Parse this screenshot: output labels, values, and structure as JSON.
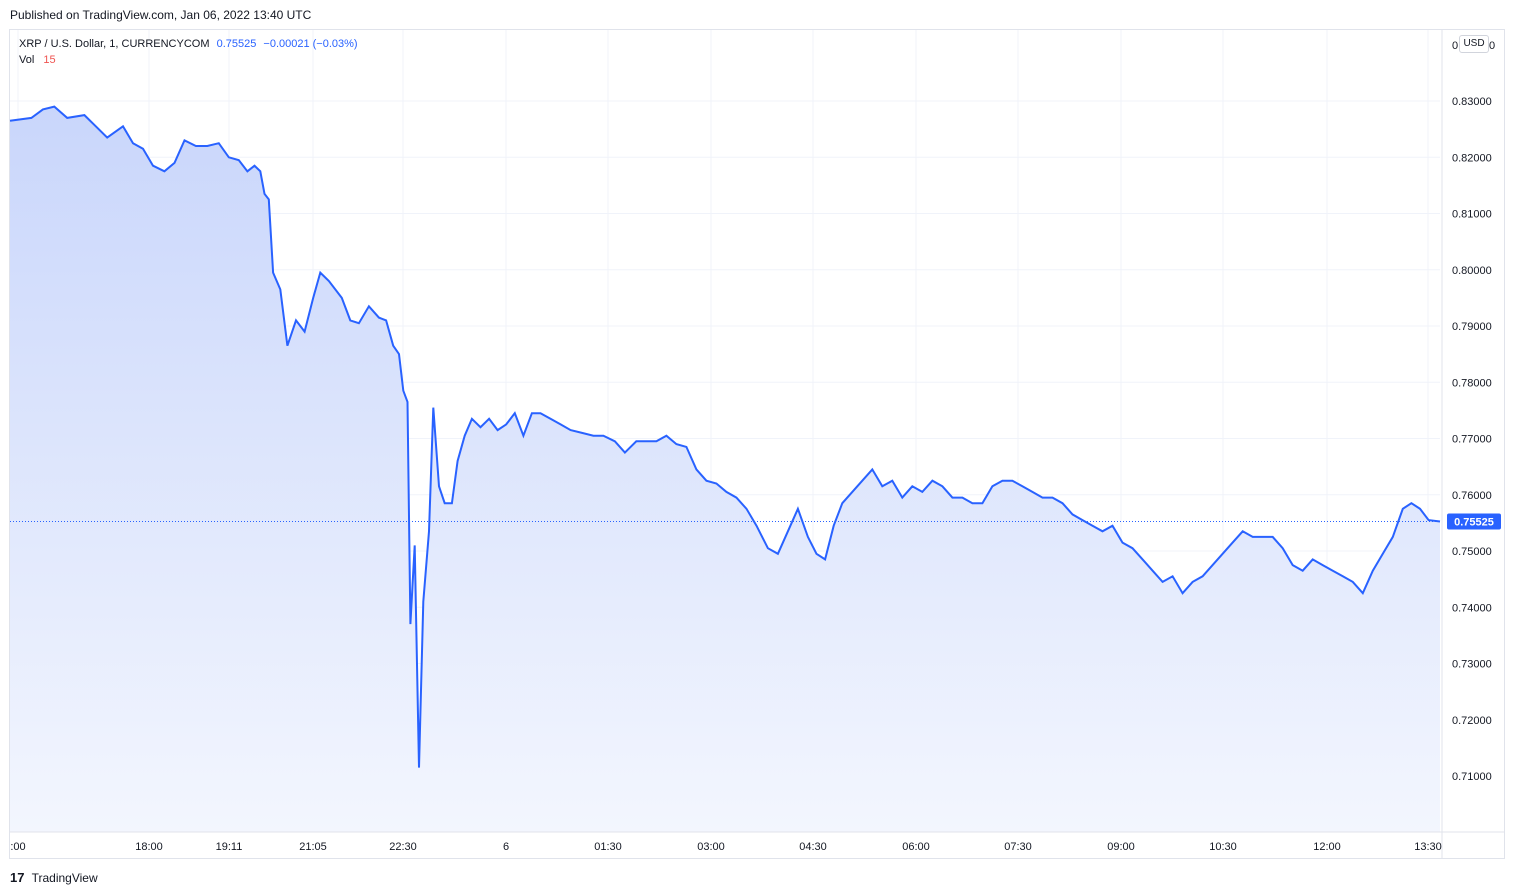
{
  "header": {
    "published": "Published on TradingView.com, Jan 06, 2022 13:40 UTC"
  },
  "legend": {
    "symbol": "XRP / U.S. Dollar, 1, CURRENCYCOM",
    "price": "0.75525",
    "change": "−0.00021 (−0.03%)",
    "volume_label": "Vol",
    "volume_value": "15"
  },
  "currency_button": "USD",
  "footer": {
    "logo": "17",
    "brand": "TradingView"
  },
  "colors": {
    "line": "#2962ff",
    "area_top": "#c9d6fb",
    "area_bottom": "#f3f6fe",
    "vol_up": "#26a69a",
    "vol_down": "#ef5350",
    "grid": "#f0f3fa"
  },
  "chart_data": {
    "type": "area",
    "ylim": [
      0.7,
      0.84
    ],
    "y_ticks": [
      "0.71000",
      "0.72000",
      "0.73000",
      "0.74000",
      "0.75000",
      "0.76000",
      "0.77000",
      "0.78000",
      "0.79000",
      "0.80000",
      "0.81000",
      "0.82000",
      "0.83000"
    ],
    "top_tick_partial": "0",
    "x_ticks": [
      ":00",
      "18:00",
      "19:11",
      "21:05",
      "22:30",
      "6",
      "01:30",
      "03:00",
      "04:30",
      "06:00",
      "07:30",
      "09:00",
      "10:30",
      "12:00",
      "13:30"
    ],
    "last_price_label": "0.75525",
    "last_price": 0.75525,
    "x_range": [
      0,
      100
    ],
    "price_series": [
      [
        0,
        0.8265
      ],
      [
        1.5,
        0.827
      ],
      [
        2.3,
        0.8285
      ],
      [
        3.1,
        0.829
      ],
      [
        4,
        0.827
      ],
      [
        5.2,
        0.8275
      ],
      [
        6,
        0.8255
      ],
      [
        6.8,
        0.8235
      ],
      [
        7.9,
        0.8255
      ],
      [
        8.6,
        0.8225
      ],
      [
        9.3,
        0.8215
      ],
      [
        10,
        0.8185
      ],
      [
        10.8,
        0.8175
      ],
      [
        11.5,
        0.819
      ],
      [
        12.2,
        0.823
      ],
      [
        13,
        0.822
      ],
      [
        13.8,
        0.822
      ],
      [
        14.6,
        0.8225
      ],
      [
        15.3,
        0.82
      ],
      [
        16,
        0.8195
      ],
      [
        16.6,
        0.8175
      ],
      [
        17.1,
        0.8185
      ],
      [
        17.5,
        0.8175
      ],
      [
        17.8,
        0.8135
      ],
      [
        18.1,
        0.8125
      ],
      [
        18.4,
        0.7995
      ],
      [
        18.9,
        0.7965
      ],
      [
        19.4,
        0.7865
      ],
      [
        20,
        0.791
      ],
      [
        20.6,
        0.789
      ],
      [
        21.2,
        0.795
      ],
      [
        21.7,
        0.7995
      ],
      [
        22.3,
        0.798
      ],
      [
        23.2,
        0.795
      ],
      [
        23.8,
        0.791
      ],
      [
        24.4,
        0.7905
      ],
      [
        25.1,
        0.7935
      ],
      [
        25.8,
        0.7915
      ],
      [
        26.3,
        0.791
      ],
      [
        26.8,
        0.7865
      ],
      [
        27.2,
        0.785
      ],
      [
        27.5,
        0.7785
      ],
      [
        27.8,
        0.7765
      ],
      [
        28,
        0.737
      ],
      [
        28.3,
        0.751
      ],
      [
        28.6,
        0.7115
      ],
      [
        28.9,
        0.741
      ],
      [
        29.3,
        0.7535
      ],
      [
        29.6,
        0.7755
      ],
      [
        30,
        0.7615
      ],
      [
        30.4,
        0.7585
      ],
      [
        30.9,
        0.7585
      ],
      [
        31.3,
        0.766
      ],
      [
        31.8,
        0.7705
      ],
      [
        32.3,
        0.7735
      ],
      [
        32.9,
        0.772
      ],
      [
        33.5,
        0.7735
      ],
      [
        34.1,
        0.7715
      ],
      [
        34.7,
        0.7725
      ],
      [
        35.3,
        0.7745
      ],
      [
        35.9,
        0.7705
      ],
      [
        36.5,
        0.7745
      ],
      [
        37.1,
        0.7745
      ],
      [
        37.8,
        0.7735
      ],
      [
        38.5,
        0.7725
      ],
      [
        39.2,
        0.7715
      ],
      [
        40,
        0.771
      ],
      [
        40.8,
        0.7705
      ],
      [
        41.5,
        0.7705
      ],
      [
        42.3,
        0.7695
      ],
      [
        43,
        0.7675
      ],
      [
        43.8,
        0.7695
      ],
      [
        44.5,
        0.7695
      ],
      [
        45.2,
        0.7695
      ],
      [
        45.9,
        0.7705
      ],
      [
        46.6,
        0.769
      ],
      [
        47.3,
        0.7685
      ],
      [
        48,
        0.7645
      ],
      [
        48.7,
        0.7625
      ],
      [
        49.4,
        0.762
      ],
      [
        50.1,
        0.7605
      ],
      [
        50.8,
        0.7595
      ],
      [
        51.5,
        0.7575
      ],
      [
        52.2,
        0.7545
      ],
      [
        53,
        0.7505
      ],
      [
        53.7,
        0.7495
      ],
      [
        54.4,
        0.7535
      ],
      [
        55.1,
        0.7575
      ],
      [
        55.8,
        0.7525
      ],
      [
        56.4,
        0.7495
      ],
      [
        57,
        0.7485
      ],
      [
        57.6,
        0.7545
      ],
      [
        58.2,
        0.7585
      ],
      [
        58.9,
        0.7605
      ],
      [
        59.6,
        0.7625
      ],
      [
        60.3,
        0.7645
      ],
      [
        61,
        0.7615
      ],
      [
        61.7,
        0.7625
      ],
      [
        62.4,
        0.7595
      ],
      [
        63.1,
        0.7615
      ],
      [
        63.8,
        0.7605
      ],
      [
        64.5,
        0.7625
      ],
      [
        65.2,
        0.7615
      ],
      [
        65.9,
        0.7595
      ],
      [
        66.6,
        0.7595
      ],
      [
        67.3,
        0.7585
      ],
      [
        68,
        0.7585
      ],
      [
        68.7,
        0.7615
      ],
      [
        69.4,
        0.7625
      ],
      [
        70.1,
        0.7625
      ],
      [
        70.8,
        0.7615
      ],
      [
        71.5,
        0.7605
      ],
      [
        72.2,
        0.7595
      ],
      [
        72.9,
        0.7595
      ],
      [
        73.6,
        0.7585
      ],
      [
        74.3,
        0.7565
      ],
      [
        75,
        0.7555
      ],
      [
        75.7,
        0.7545
      ],
      [
        76.4,
        0.7535
      ],
      [
        77.1,
        0.7545
      ],
      [
        77.8,
        0.7515
      ],
      [
        78.5,
        0.7505
      ],
      [
        79.2,
        0.7485
      ],
      [
        79.9,
        0.7465
      ],
      [
        80.6,
        0.7445
      ],
      [
        81.3,
        0.7455
      ],
      [
        82,
        0.7425
      ],
      [
        82.7,
        0.7445
      ],
      [
        83.4,
        0.7455
      ],
      [
        84.1,
        0.7475
      ],
      [
        84.8,
        0.7495
      ],
      [
        85.5,
        0.7515
      ],
      [
        86.2,
        0.7535
      ],
      [
        86.9,
        0.7525
      ],
      [
        87.6,
        0.7525
      ],
      [
        88.3,
        0.7525
      ],
      [
        89,
        0.7505
      ],
      [
        89.7,
        0.7475
      ],
      [
        90.4,
        0.7465
      ],
      [
        91.1,
        0.7485
      ],
      [
        91.8,
        0.7475
      ],
      [
        92.5,
        0.7465
      ],
      [
        93.2,
        0.7455
      ],
      [
        93.9,
        0.7445
      ],
      [
        94.6,
        0.7425
      ],
      [
        95.3,
        0.7465
      ],
      [
        96,
        0.7495
      ],
      [
        96.7,
        0.7525
      ],
      [
        97.4,
        0.7575
      ],
      [
        98,
        0.7585
      ],
      [
        98.6,
        0.7575
      ],
      [
        99.2,
        0.7555
      ],
      [
        100,
        0.75525
      ]
    ]
  }
}
